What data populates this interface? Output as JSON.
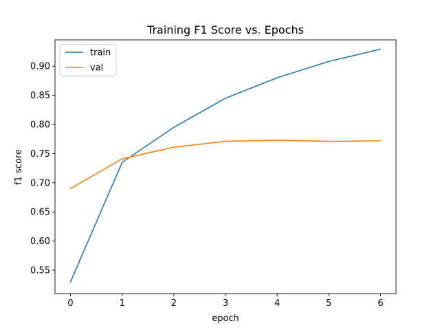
{
  "chart_data": {
    "type": "line",
    "title": "Training F1 Score vs. Epochs",
    "xlabel": "epoch",
    "ylabel": "f1 score",
    "x": [
      0,
      1,
      2,
      3,
      4,
      5,
      6
    ],
    "xlim": [
      -0.3,
      6.3
    ],
    "ylim": [
      0.51,
      0.945
    ],
    "xticks": [
      "0",
      "1",
      "2",
      "3",
      "4",
      "5",
      "6"
    ],
    "yticks": [
      "0.55",
      "0.60",
      "0.65",
      "0.70",
      "0.75",
      "0.80",
      "0.85",
      "0.90"
    ],
    "grid": false,
    "legend_position": "top-left",
    "series": [
      {
        "name": "train",
        "color": "#1f77b4",
        "values": [
          0.53,
          0.735,
          0.795,
          0.845,
          0.88,
          0.908,
          0.929
        ]
      },
      {
        "name": "val",
        "color": "#ff7f0e",
        "values": [
          0.69,
          0.741,
          0.761,
          0.771,
          0.773,
          0.771,
          0.772
        ]
      }
    ]
  }
}
